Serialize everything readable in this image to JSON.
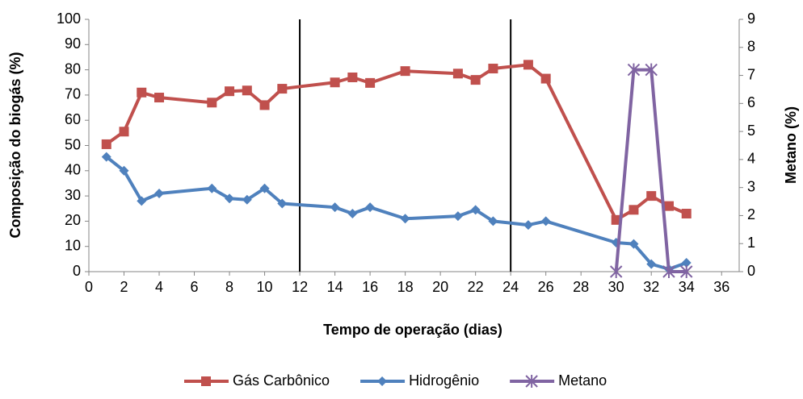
{
  "chart_data": {
    "type": "line",
    "xlabel": "Tempo de operação (dias)",
    "ylabel": "Composição do biogás (%)",
    "y2label": "Metano (%)",
    "xlim": [
      0,
      37
    ],
    "xticks": [
      0,
      2,
      4,
      6,
      8,
      10,
      12,
      14,
      16,
      18,
      20,
      22,
      24,
      26,
      28,
      30,
      32,
      34,
      36
    ],
    "ylim": [
      0,
      100
    ],
    "yticks": [
      0,
      10,
      20,
      30,
      40,
      50,
      60,
      70,
      80,
      90,
      100
    ],
    "y2lim": [
      0,
      9
    ],
    "y2ticks": [
      0,
      1,
      2,
      3,
      4,
      5,
      6,
      7,
      8,
      9
    ],
    "vlines": [
      12,
      24
    ],
    "legend": "bottom",
    "series": [
      {
        "name": "Gás Carbônico",
        "color": "#c0504d",
        "marker": "square",
        "x": [
          1,
          2,
          3,
          4,
          7,
          8,
          9,
          10,
          11,
          14,
          15,
          16,
          18,
          21,
          22,
          23,
          25,
          26,
          30,
          31,
          32,
          33,
          34
        ],
        "values": [
          50.5,
          55.5,
          71,
          69,
          67,
          71.5,
          71.8,
          66,
          72.5,
          75,
          77,
          74.8,
          79.5,
          78.5,
          76,
          80.5,
          82,
          76.5,
          20.5,
          24.5,
          30,
          26,
          23
        ]
      },
      {
        "name": "Hidrogênio",
        "color": "#4f81bd",
        "marker": "diamond",
        "x": [
          1,
          2,
          3,
          4,
          7,
          8,
          9,
          10,
          11,
          14,
          15,
          16,
          18,
          21,
          22,
          23,
          25,
          26,
          30,
          31,
          32,
          33,
          34
        ],
        "values": [
          45.5,
          40,
          28,
          31,
          33,
          29,
          28.5,
          33,
          27,
          25.5,
          23,
          25.5,
          21,
          22,
          24.5,
          20,
          18.5,
          20,
          11.5,
          11,
          3,
          1,
          3.5
        ]
      },
      {
        "name": "Metano",
        "color": "#8064a2",
        "marker": "star",
        "axis": "y2",
        "x": [
          30,
          31,
          32,
          33,
          34
        ],
        "values": [
          0,
          7.2,
          7.2,
          0,
          0
        ]
      }
    ]
  }
}
